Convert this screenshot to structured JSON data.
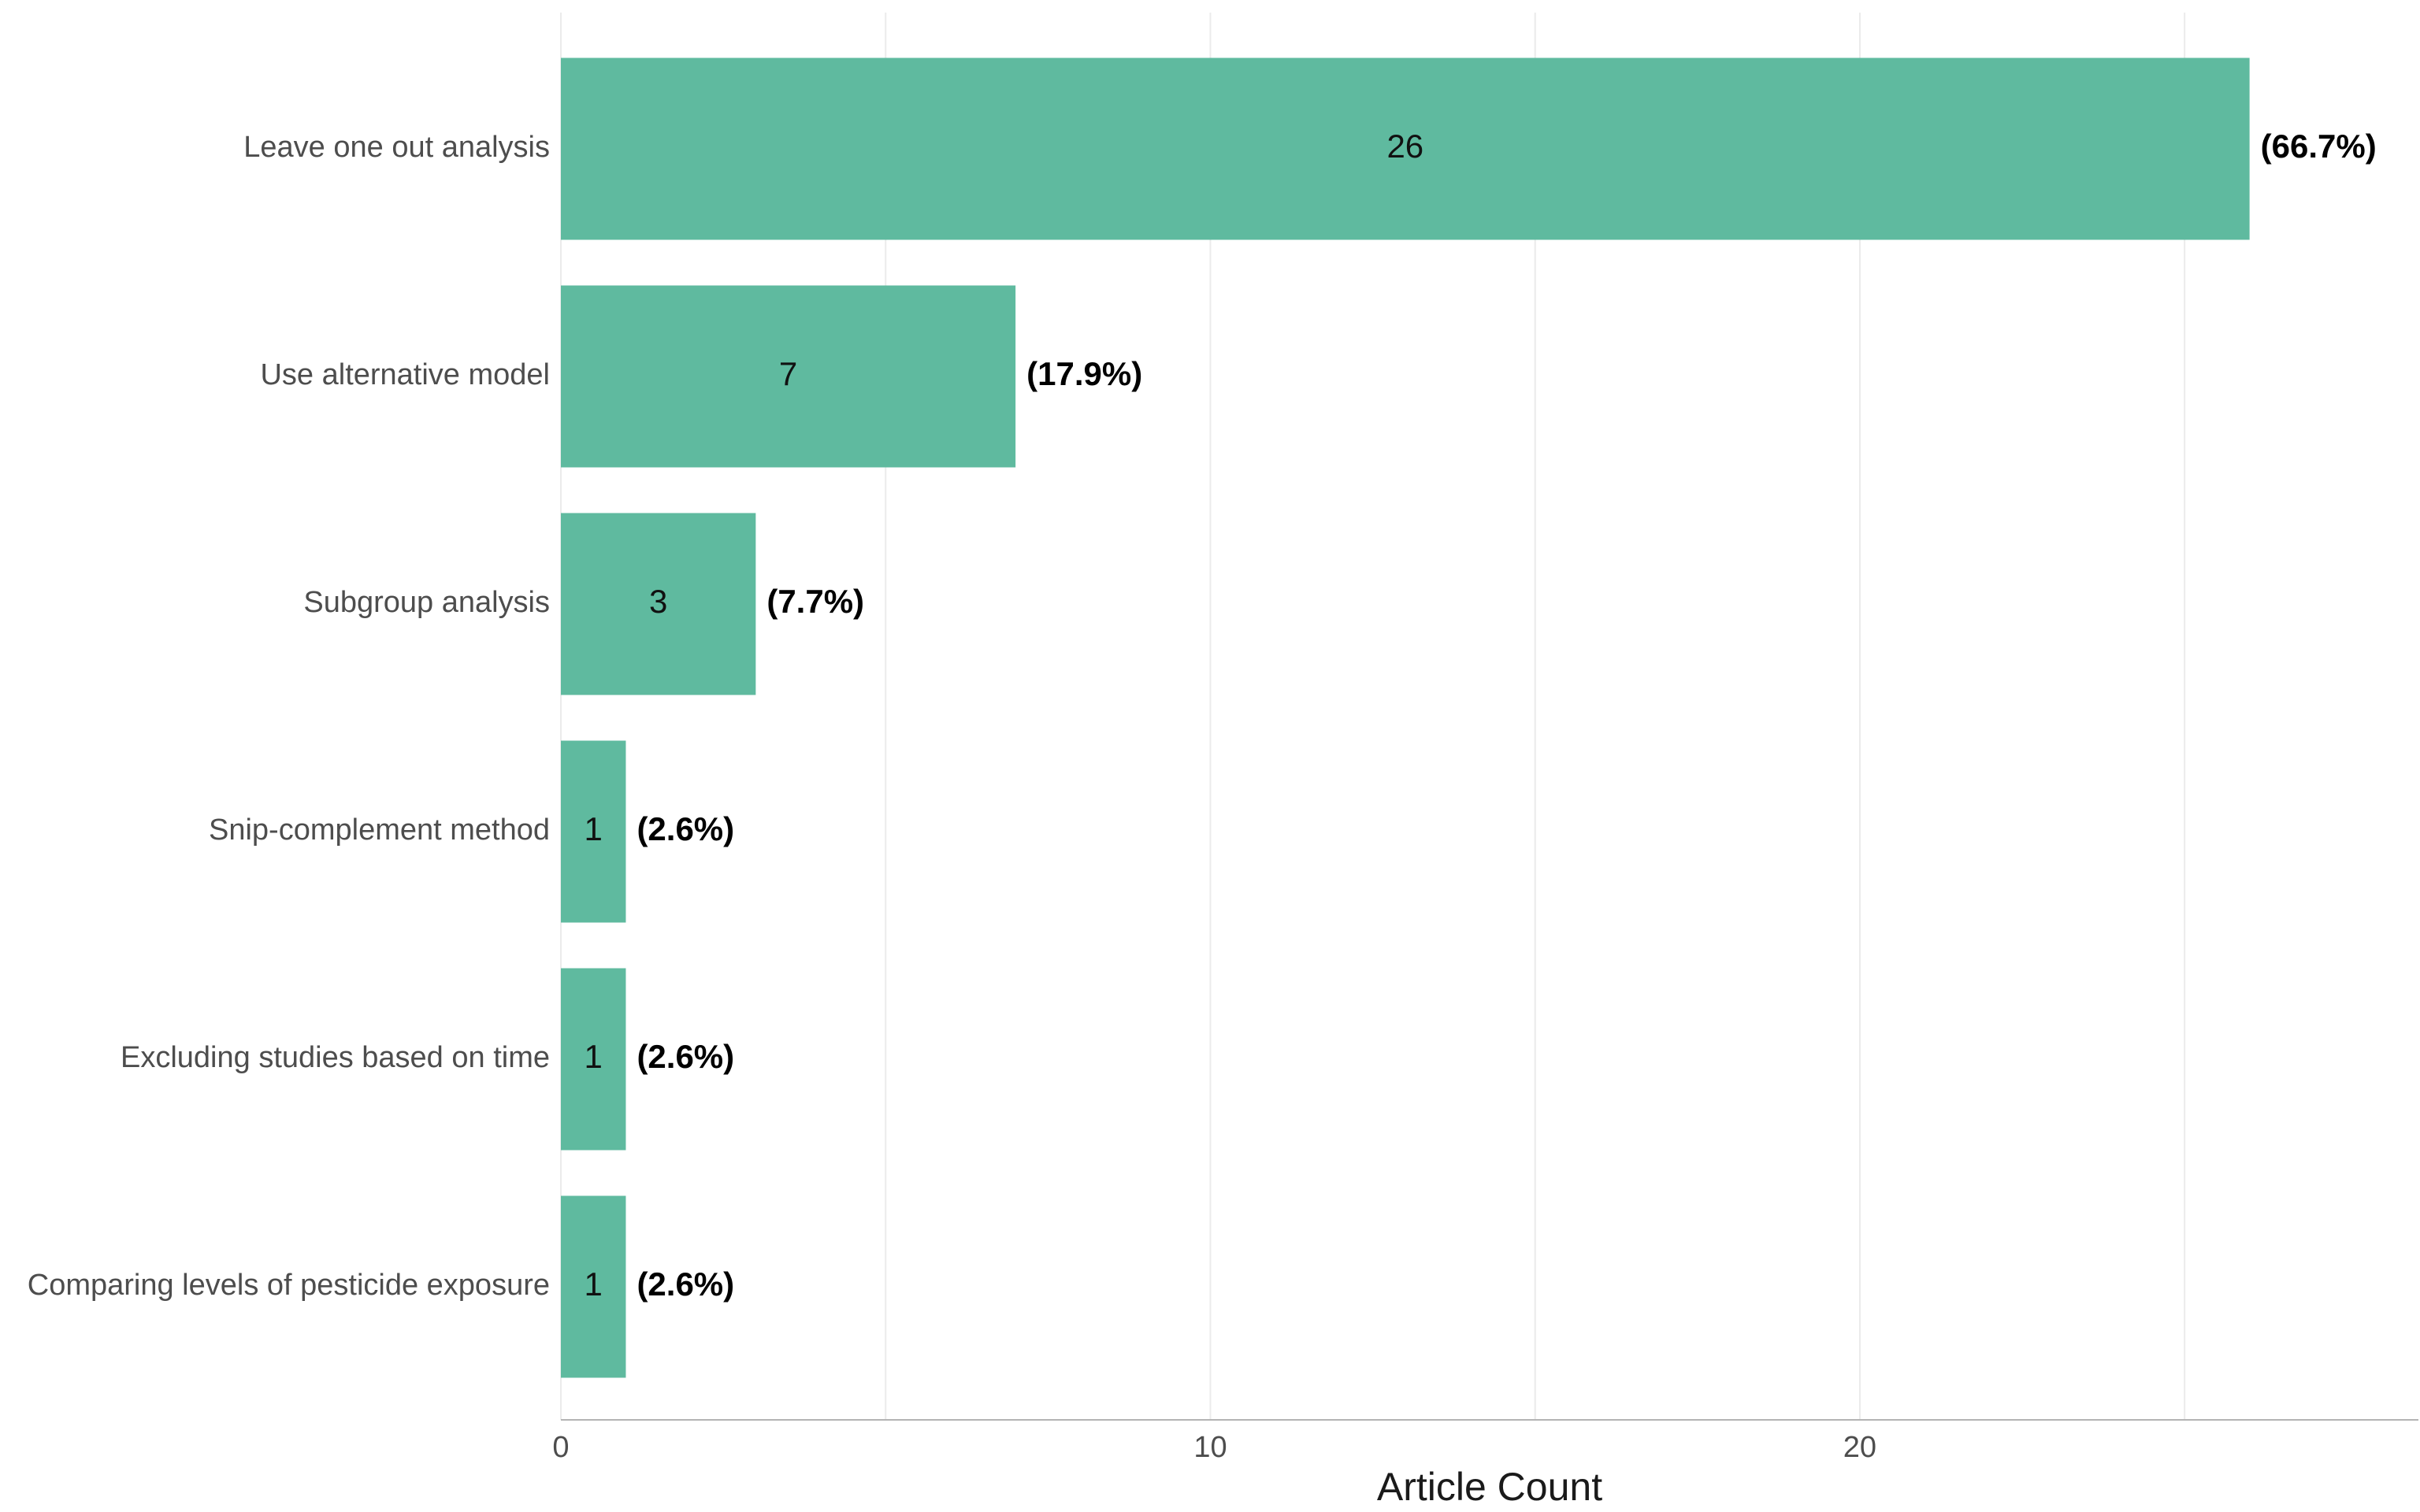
{
  "chart_data": {
    "type": "bar",
    "orientation": "horizontal",
    "categories": [
      "Leave one out analysis",
      "Use alternative model",
      "Subgroup analysis",
      "Snip-complement method",
      "Excluding studies based on time",
      "Comparing levels of pesticide exposure"
    ],
    "values": [
      26,
      7,
      3,
      1,
      1,
      1
    ],
    "percent_labels": [
      "(66.7%)",
      "(17.9%)",
      "(7.7%)",
      "(2.6%)",
      "(2.6%)",
      "(2.6%)"
    ],
    "xlabel": "Article Count",
    "ylabel": "",
    "xlim": [
      0,
      28.6
    ],
    "xticks": [
      0,
      10,
      20
    ],
    "minor_gridlines": [
      5,
      15,
      25
    ],
    "grid": "vertical",
    "bar_color": "#5fba9f"
  }
}
